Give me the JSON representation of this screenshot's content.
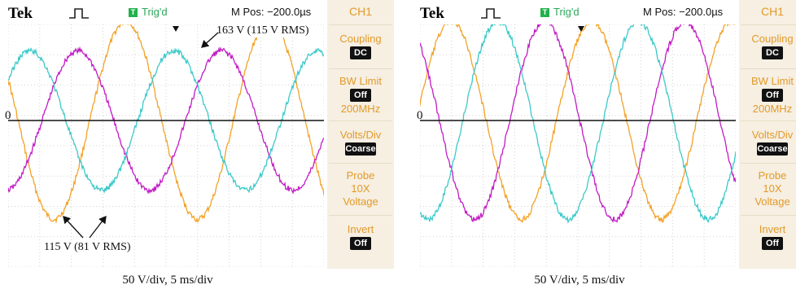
{
  "panels": [
    {
      "brand": "Tek",
      "trig_status": "Trig'd",
      "trig_icon_letter": "T",
      "mpos": "M Pos: −200.0µs",
      "channel": "CH1",
      "coupling_label": "Coupling",
      "coupling_value": "DC",
      "bw_label": "BW Limit",
      "bw_value": "Off",
      "bw_sub": "200MHz",
      "volts_label": "Volts/Div",
      "volts_value": "Coarse",
      "probe_label": "Probe",
      "probe_sub1": "10X",
      "probe_sub2": "Voltage",
      "invert_label": "Invert",
      "invert_value": "Off",
      "zero_label": "0",
      "caption": "50 V/div,   5 ms/div",
      "annotations": {
        "peak": "163 V (115 V RMS)",
        "low": "115 V (81 V RMS)"
      }
    },
    {
      "brand": "Tek",
      "trig_status": "Trig'd",
      "trig_icon_letter": "T",
      "mpos": "M Pos: −200.0µs",
      "channel": "CH1",
      "coupling_label": "Coupling",
      "coupling_value": "DC",
      "bw_label": "BW Limit",
      "bw_value": "Off",
      "bw_sub": "200MHz",
      "volts_label": "Volts/Div",
      "volts_value": "Coarse",
      "probe_label": "Probe",
      "probe_sub1": "10X",
      "probe_sub2": "Voltage",
      "invert_label": "Invert",
      "invert_value": "Off",
      "zero_label": "0",
      "caption": "50 V/div,   5 ms/div"
    }
  ],
  "colors": {
    "orange": "#f2a227",
    "magenta": "#c21bc4",
    "cyan": "#3cc9c9",
    "grid": "#c8c8c8",
    "side_text": "#e39a2a"
  },
  "waveforms": {
    "left": {
      "cycles": 2.2,
      "phase_deg": 155,
      "orange_amp_v": 163,
      "magenta_amp_v": 115,
      "cyan_amp_v": 115
    },
    "right": {
      "cycles": 2.25,
      "phase_deg": 10,
      "orange_amp_v": 163,
      "magenta_amp_v": 163,
      "cyan_amp_v": 163
    },
    "volts_per_div": 50,
    "ms_per_div": 5
  }
}
